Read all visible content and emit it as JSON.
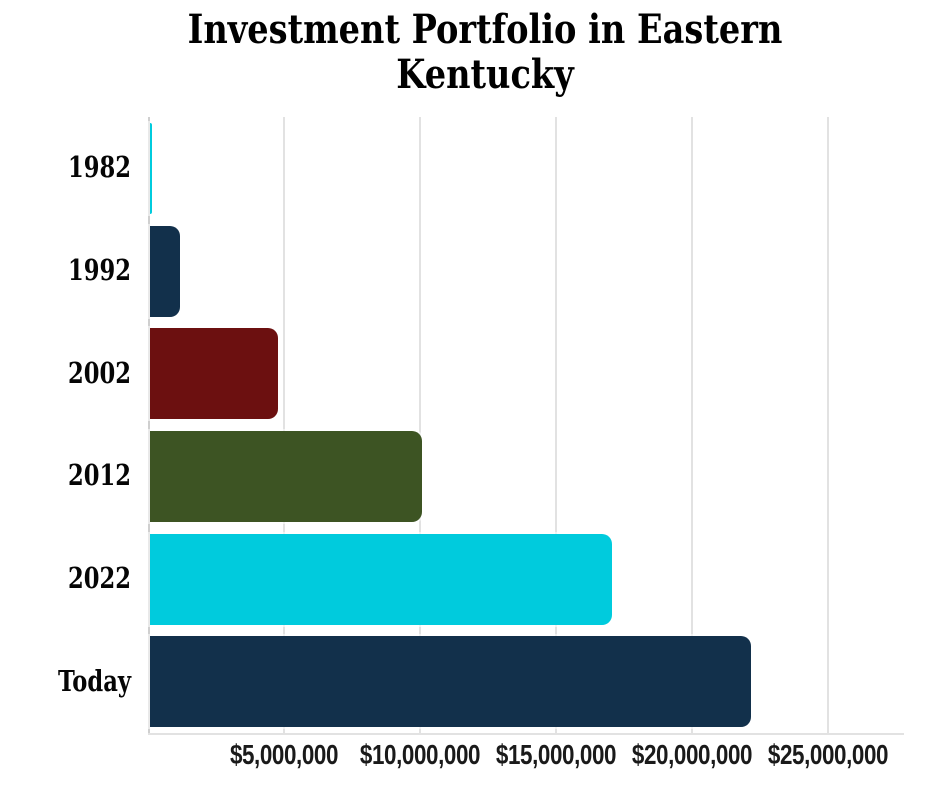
{
  "chart_data": {
    "type": "bar",
    "orientation": "horizontal",
    "title": "Investment Portfolio in Eastern Kentucky",
    "categories": [
      "1982",
      "1992",
      "2002",
      "2012",
      "2022",
      "Today"
    ],
    "values": [
      75000,
      1100000,
      4700000,
      10000000,
      17000000,
      22100000
    ],
    "value_unit": "USD",
    "bar_colors": [
      "#00cbdd",
      "#12304b",
      "#6c1010",
      "#3d5423",
      "#00cbdd",
      "#12304b"
    ],
    "xlabel": "",
    "ylabel": "",
    "xlim": [
      0,
      27800000
    ],
    "x_ticks": [
      {
        "value": 5000000,
        "label": "$5,000,000"
      },
      {
        "value": 10000000,
        "label": "$10,000,000"
      },
      {
        "value": 15000000,
        "label": "$15,000,000"
      },
      {
        "value": 20000000,
        "label": "$20,000,000"
      },
      {
        "value": 25000000,
        "label": "$25,000,000"
      }
    ],
    "grid": "vertical-gridlines-only",
    "legend": "none",
    "colors": {
      "background": "#ffffff",
      "gridline": "#e2e2e2",
      "axis_line": "#cfcfcf",
      "title_text": "#000000",
      "tick_text": "#1a1a1a"
    }
  }
}
